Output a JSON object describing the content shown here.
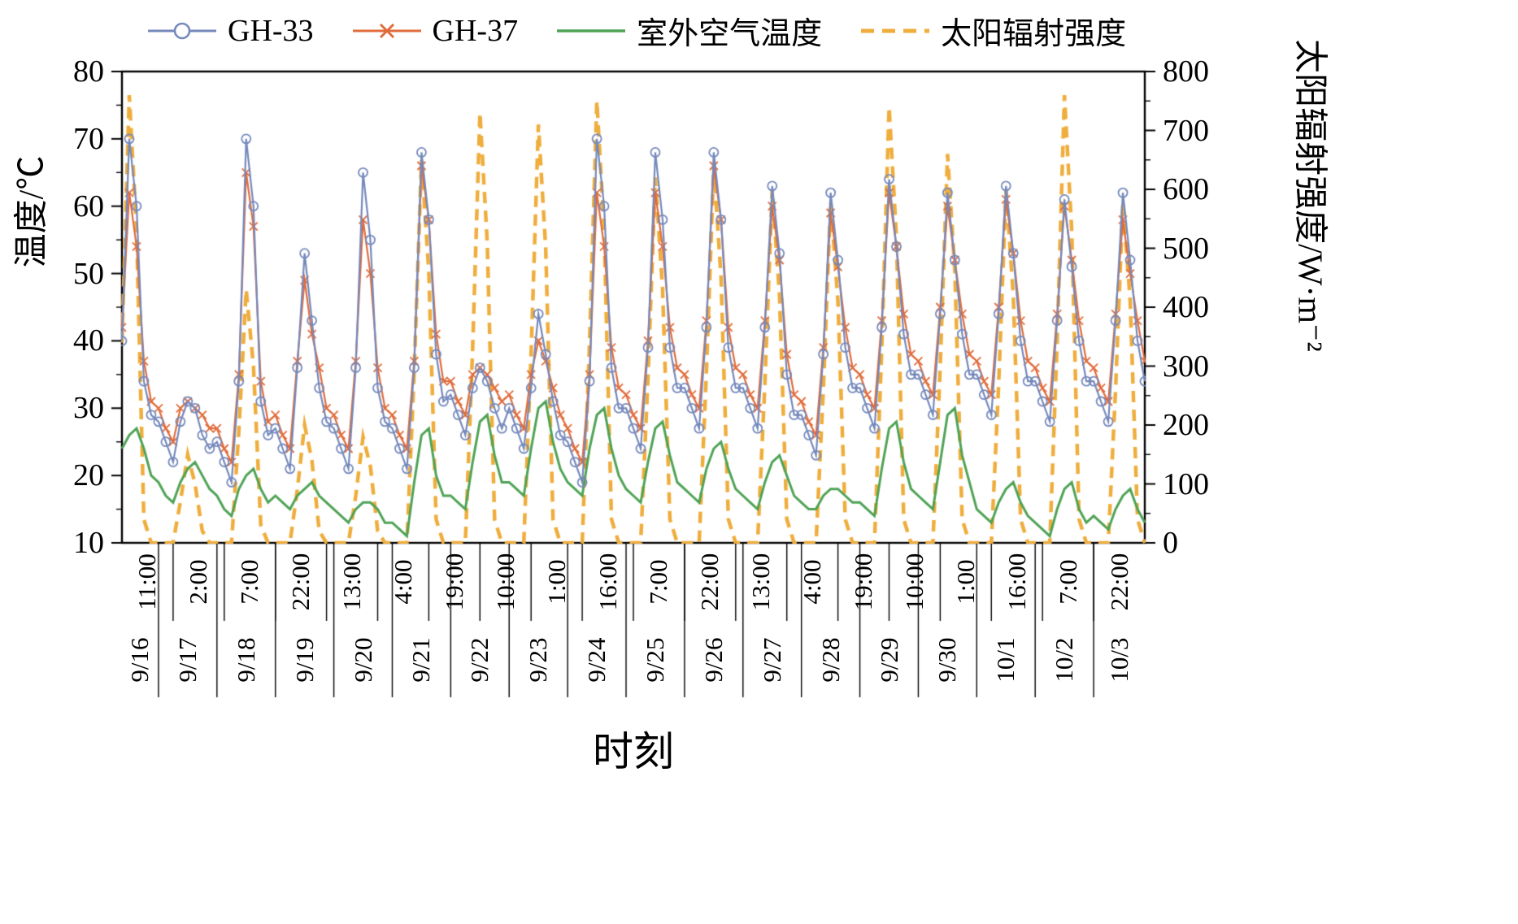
{
  "chart_data": {
    "type": "line",
    "title": "",
    "xlabel": "时刻",
    "ylabel_left": "温度/℃",
    "ylabel_right": "太阳辐射强度/W·m⁻²",
    "legend_position": "top",
    "grid": false,
    "x_start_hour": 9,
    "x_step_hours": 3,
    "x_end_hour": 429,
    "y_left": {
      "min": 10,
      "max": 80,
      "ticks": [
        10,
        20,
        30,
        40,
        50,
        60,
        70,
        80
      ]
    },
    "y_right": {
      "min": 0,
      "max": 800,
      "ticks": [
        0,
        100,
        200,
        300,
        400,
        500,
        600,
        700,
        800
      ]
    },
    "x_axis": {
      "time_tick_labels": [
        "11:00",
        "2:00",
        "7:00",
        "22:00",
        "13:00",
        "4:00",
        "19:00",
        "10:00",
        "1:00",
        "16:00",
        "7:00",
        "22:00",
        "13:00",
        "4:00",
        "19:00",
        "10:00",
        "1:00",
        "16:00",
        "7:00",
        "22:00"
      ],
      "date_labels": [
        "9/16",
        "9/17",
        "9/18",
        "9/19",
        "9/20",
        "9/21",
        "9/22",
        "9/23",
        "9/24",
        "9/25",
        "9/26",
        "9/27",
        "9/28",
        "9/29",
        "9/30",
        "10/1",
        "10/2",
        "10/3"
      ]
    },
    "series": [
      {
        "name": "GH-33",
        "axis": "left",
        "color": "#7589BC",
        "marker": "circle",
        "line": "solid",
        "values": [
          40,
          70,
          60,
          34,
          29,
          28,
          25,
          22,
          28,
          31,
          30,
          26,
          24,
          25,
          22,
          19,
          34,
          70,
          60,
          31,
          26,
          27,
          24,
          21,
          36,
          53,
          43,
          33,
          28,
          27,
          24,
          21,
          36,
          65,
          55,
          33,
          28,
          27,
          24,
          21,
          36,
          68,
          58,
          38,
          31,
          32,
          29,
          26,
          33,
          36,
          34,
          30,
          27,
          30,
          27,
          24,
          33,
          44,
          38,
          31,
          26,
          25,
          22,
          19,
          34,
          70,
          60,
          36,
          30,
          30,
          27,
          24,
          39,
          68,
          58,
          39,
          33,
          33,
          30,
          27,
          42,
          68,
          58,
          39,
          33,
          33,
          30,
          27,
          42,
          63,
          53,
          35,
          29,
          29,
          26,
          23,
          38,
          62,
          52,
          39,
          33,
          33,
          30,
          27,
          42,
          64,
          54,
          41,
          35,
          35,
          32,
          29,
          44,
          62,
          52,
          41,
          35,
          35,
          32,
          29,
          44,
          63,
          53,
          40,
          34,
          34,
          31,
          28,
          43,
          61,
          51,
          40,
          34,
          34,
          31,
          28,
          43,
          62,
          52,
          40,
          34
        ]
      },
      {
        "name": "GH-37",
        "axis": "left",
        "color": "#E06C3C",
        "marker": "x",
        "line": "solid",
        "values": [
          42,
          62,
          54,
          37,
          31,
          30,
          27,
          25,
          30,
          31,
          30,
          29,
          27,
          27,
          24,
          22,
          35,
          65,
          57,
          34,
          28,
          29,
          26,
          24,
          37,
          49,
          41,
          36,
          30,
          29,
          26,
          24,
          37,
          58,
          50,
          36,
          30,
          29,
          26,
          24,
          37,
          66,
          58,
          41,
          34,
          34,
          31,
          29,
          35,
          36,
          35,
          33,
          31,
          32,
          29,
          27,
          35,
          40,
          37,
          33,
          29,
          27,
          24,
          22,
          35,
          62,
          54,
          39,
          33,
          32,
          29,
          27,
          40,
          62,
          54,
          42,
          36,
          35,
          32,
          30,
          43,
          66,
          58,
          42,
          36,
          35,
          32,
          30,
          43,
          60,
          52,
          38,
          32,
          31,
          28,
          26,
          39,
          59,
          51,
          42,
          36,
          35,
          32,
          30,
          43,
          62,
          54,
          44,
          38,
          37,
          34,
          32,
          45,
          60,
          52,
          44,
          38,
          37,
          34,
          32,
          45,
          61,
          53,
          43,
          37,
          36,
          33,
          31,
          44,
          60,
          52,
          43,
          37,
          36,
          33,
          31,
          44,
          58,
          50,
          43,
          37
        ]
      },
      {
        "name": "室外空气温度",
        "axis": "left",
        "color": "#4FA355",
        "marker": "none",
        "line": "solid",
        "values": [
          24,
          26,
          27,
          24,
          20,
          19,
          17,
          16,
          19,
          21,
          22,
          20,
          18,
          17,
          15,
          14,
          18,
          20,
          21,
          18,
          16,
          17,
          16,
          15,
          17,
          18,
          19,
          17,
          16,
          15,
          14,
          13,
          15,
          16,
          16,
          15,
          13,
          13,
          12,
          11,
          19,
          26,
          27,
          20,
          17,
          17,
          16,
          15,
          22,
          28,
          29,
          23,
          19,
          19,
          18,
          17,
          24,
          30,
          31,
          25,
          21,
          19,
          18,
          17,
          24,
          29,
          30,
          24,
          20,
          18,
          17,
          16,
          22,
          27,
          28,
          23,
          19,
          18,
          17,
          16,
          21,
          24,
          25,
          21,
          18,
          17,
          16,
          15,
          19,
          22,
          23,
          20,
          17,
          16,
          15,
          15,
          17,
          18,
          18,
          17,
          16,
          16,
          15,
          14,
          21,
          27,
          28,
          22,
          18,
          17,
          16,
          15,
          22,
          29,
          30,
          23,
          19,
          15,
          14,
          13,
          16,
          18,
          19,
          16,
          14,
          13,
          12,
          11,
          15,
          18,
          19,
          15,
          13,
          14,
          13,
          12,
          15,
          17,
          18,
          15,
          13
        ]
      },
      {
        "name": "太阳辐射强度",
        "axis": "right",
        "color": "#EFAD3C",
        "marker": "none",
        "line": "dashed",
        "values": [
          340,
          760,
          530,
          40,
          0,
          0,
          0,
          0,
          70,
          150,
          100,
          20,
          0,
          0,
          0,
          0,
          190,
          430,
          300,
          30,
          0,
          0,
          0,
          0,
          90,
          200,
          140,
          20,
          0,
          0,
          0,
          0,
          80,
          180,
          130,
          20,
          0,
          0,
          0,
          0,
          290,
          650,
          460,
          40,
          0,
          0,
          0,
          0,
          330,
          730,
          510,
          40,
          0,
          0,
          0,
          0,
          320,
          710,
          500,
          40,
          0,
          0,
          0,
          0,
          340,
          750,
          530,
          40,
          0,
          0,
          0,
          0,
          280,
          620,
          430,
          40,
          0,
          0,
          0,
          0,
          290,
          640,
          450,
          40,
          0,
          0,
          0,
          0,
          270,
          600,
          420,
          40,
          0,
          0,
          0,
          0,
          260,
          580,
          410,
          40,
          0,
          0,
          0,
          0,
          330,
          740,
          520,
          40,
          0,
          0,
          0,
          0,
          300,
          660,
          460,
          40,
          0,
          0,
          0,
          0,
          270,
          600,
          420,
          40,
          0,
          0,
          0,
          0,
          340,
          760,
          530,
          40,
          0,
          0,
          0,
          0,
          260,
          580,
          410,
          40,
          0
        ]
      }
    ]
  }
}
